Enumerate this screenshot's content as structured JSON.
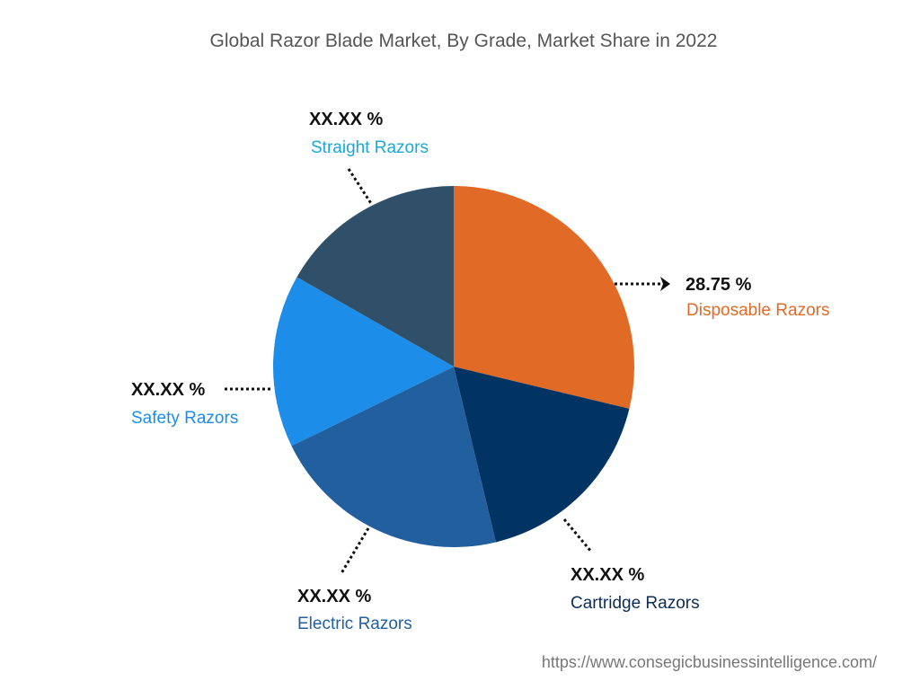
{
  "chart_data": {
    "type": "pie",
    "title": "Global Razor Blade Market, By Grade, Market Share in 2022",
    "slices": [
      {
        "name": "Disposable Razors",
        "label": "28.75 %",
        "value": 28.75,
        "color": "#E26A27",
        "label_color": "#E26A27"
      },
      {
        "name": "Cartridge Razors",
        "label": "XX.XX %",
        "value": 17.5,
        "color": "#023463",
        "label_color": "#0B2D57"
      },
      {
        "name": "Electric Razors",
        "label": "XX.XX %",
        "value": 21.5,
        "color": "#225F9F",
        "label_color": "#225F9F"
      },
      {
        "name": "Safety Razors",
        "label": "XX.XX %",
        "value": 15.5,
        "color": "#1C8DE8",
        "label_color": "#1C8DE8"
      },
      {
        "name": "Straight Razors",
        "label": "XX.XX %",
        "value": 16.75,
        "color": "#304F69",
        "label_color": "#1AA8D8"
      }
    ],
    "start_angle": "12 o'clock",
    "direction": "clockwise"
  },
  "source_url": "https://www.consegicbusinessintelligence.com/"
}
